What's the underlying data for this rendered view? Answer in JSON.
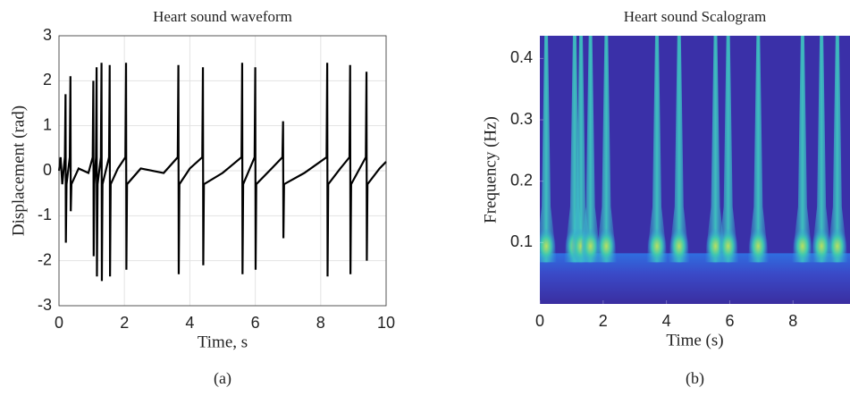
{
  "chart_data": [
    {
      "type": "line",
      "title": "Heart sound waveform",
      "xlabel": "Time, s",
      "ylabel": "Displacement (rad)",
      "caption": "(a)",
      "color": "#000000",
      "grid": true,
      "xlim": [
        0,
        10
      ],
      "ylim": [
        -3,
        3
      ],
      "xticks": [
        0,
        2,
        4,
        6,
        8,
        10
      ],
      "yticks": [
        -3,
        -2,
        -1,
        0,
        1,
        2,
        3
      ],
      "x": [
        0,
        0.05,
        0.1,
        0.18,
        0.2,
        0.21,
        0.23,
        0.33,
        0.35,
        0.36,
        0.38,
        0.6,
        0.9,
        1.03,
        1.05,
        1.06,
        1.08,
        1.13,
        1.15,
        1.16,
        1.18,
        1.28,
        1.3,
        1.31,
        1.33,
        1.53,
        1.55,
        1.56,
        1.58,
        1.8,
        2.03,
        2.05,
        2.06,
        2.08,
        2.5,
        3.2,
        3.63,
        3.65,
        3.66,
        3.68,
        4.0,
        4.38,
        4.4,
        4.41,
        4.43,
        5.0,
        5.58,
        5.6,
        5.61,
        5.63,
        5.98,
        6.0,
        6.01,
        6.03,
        6.5,
        6.83,
        6.85,
        6.86,
        6.88,
        7.5,
        8.18,
        8.2,
        8.21,
        8.23,
        8.6,
        8.88,
        8.9,
        8.91,
        8.93,
        9.38,
        9.4,
        9.41,
        9.43,
        9.8,
        10
      ],
      "y": [
        0,
        0.3,
        -0.3,
        0.3,
        1.7,
        -1.6,
        -0.3,
        0.3,
        2.1,
        -0.9,
        -0.3,
        0.05,
        -0.05,
        0.3,
        2.0,
        -1.9,
        -0.3,
        0.3,
        2.3,
        -2.35,
        -0.3,
        0.3,
        2.4,
        -2.45,
        -0.3,
        0.3,
        2.35,
        -2.35,
        -0.3,
        0.05,
        0.3,
        2.4,
        -2.2,
        -0.3,
        0.05,
        -0.05,
        0.3,
        2.35,
        -2.3,
        -0.3,
        0.05,
        0.3,
        2.3,
        -2.1,
        -0.3,
        -0.05,
        0.3,
        2.4,
        -2.3,
        -0.3,
        0.3,
        2.3,
        -2.2,
        -0.3,
        0.05,
        0.3,
        1.1,
        -1.5,
        -0.3,
        -0.05,
        0.3,
        2.4,
        -2.35,
        -0.3,
        0.05,
        0.3,
        2.35,
        -2.3,
        -0.3,
        0.3,
        2.2,
        -2.0,
        -0.3,
        0.05,
        0.2
      ]
    },
    {
      "type": "scalogram",
      "title": "Heart sound Scalogram",
      "xlabel": "Time (s)",
      "ylabel": "Frequency (Hz)",
      "caption": "(b)",
      "xlim": [
        0,
        9.8
      ],
      "ylim": [
        0,
        0.437
      ],
      "xticks": [
        0,
        2,
        4,
        6,
        8
      ],
      "yticks": [
        0.1,
        0.2,
        0.3,
        0.4
      ],
      "bursts": [
        0.2,
        1.1,
        1.3,
        1.6,
        2.1,
        3.7,
        4.4,
        5.55,
        5.95,
        6.9,
        8.3,
        8.9,
        9.4
      ]
    }
  ]
}
